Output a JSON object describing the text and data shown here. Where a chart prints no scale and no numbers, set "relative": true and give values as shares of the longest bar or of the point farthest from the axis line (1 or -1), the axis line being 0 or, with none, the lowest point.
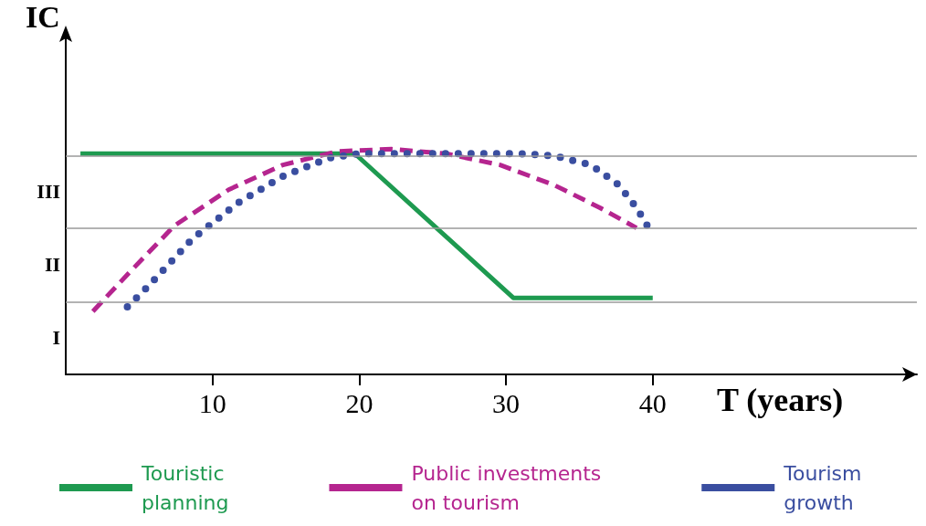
{
  "chart_data": {
    "type": "line",
    "relative": true,
    "xlabel": "T (years)",
    "ylabel": "IC",
    "xlim": [
      0,
      58
    ],
    "xticks": [
      10,
      20,
      30,
      40
    ],
    "annotations": [
      "I",
      "II",
      "III"
    ],
    "ref_lines": [
      {
        "axis": "y",
        "value": 0.32,
        "color": "#9a9a9a"
      },
      {
        "axis": "y",
        "value": 0.65,
        "color": "#9a9a9a"
      },
      {
        "axis": "y",
        "value": 0.97,
        "color": "#9a9a9a"
      }
    ],
    "grid": false,
    "legend": "bottom",
    "marker": "none",
    "series": [
      {
        "name": "Touristic\nplanning",
        "color": "#1e9a50",
        "line_style": "solid",
        "x": [
          1,
          19.7,
          30.5,
          40
        ],
        "values": [
          0.98,
          0.98,
          0.34,
          0.34
        ]
      },
      {
        "name": "Public investments\non tourism",
        "color": "#b5258f",
        "line_style": "dashed",
        "x": [
          1.85,
          4.3,
          7.4,
          11.1,
          14.8,
          18.5,
          22.2,
          25.9,
          29.6,
          33.3,
          36.4,
          38.9
        ],
        "values": [
          0.28,
          0.45,
          0.66,
          0.82,
          0.93,
          0.99,
          1,
          0.98,
          0.93,
          0.84,
          0.74,
          0.65
        ]
      },
      {
        "name": "Tourism\ngrowth",
        "color": "#3a4ea0",
        "line_style": "dotted",
        "x": [
          4.2,
          5.6,
          8.6,
          11.7,
          14.8,
          17.9,
          20,
          24,
          28,
          31,
          33.3,
          35.8,
          37.7,
          38.9,
          39.9
        ],
        "values": [
          0.3,
          0.39,
          0.6,
          0.76,
          0.88,
          0.96,
          0.98,
          0.98,
          0.98,
          0.98,
          0.97,
          0.93,
          0.84,
          0.74,
          0.63
        ]
      }
    ]
  }
}
